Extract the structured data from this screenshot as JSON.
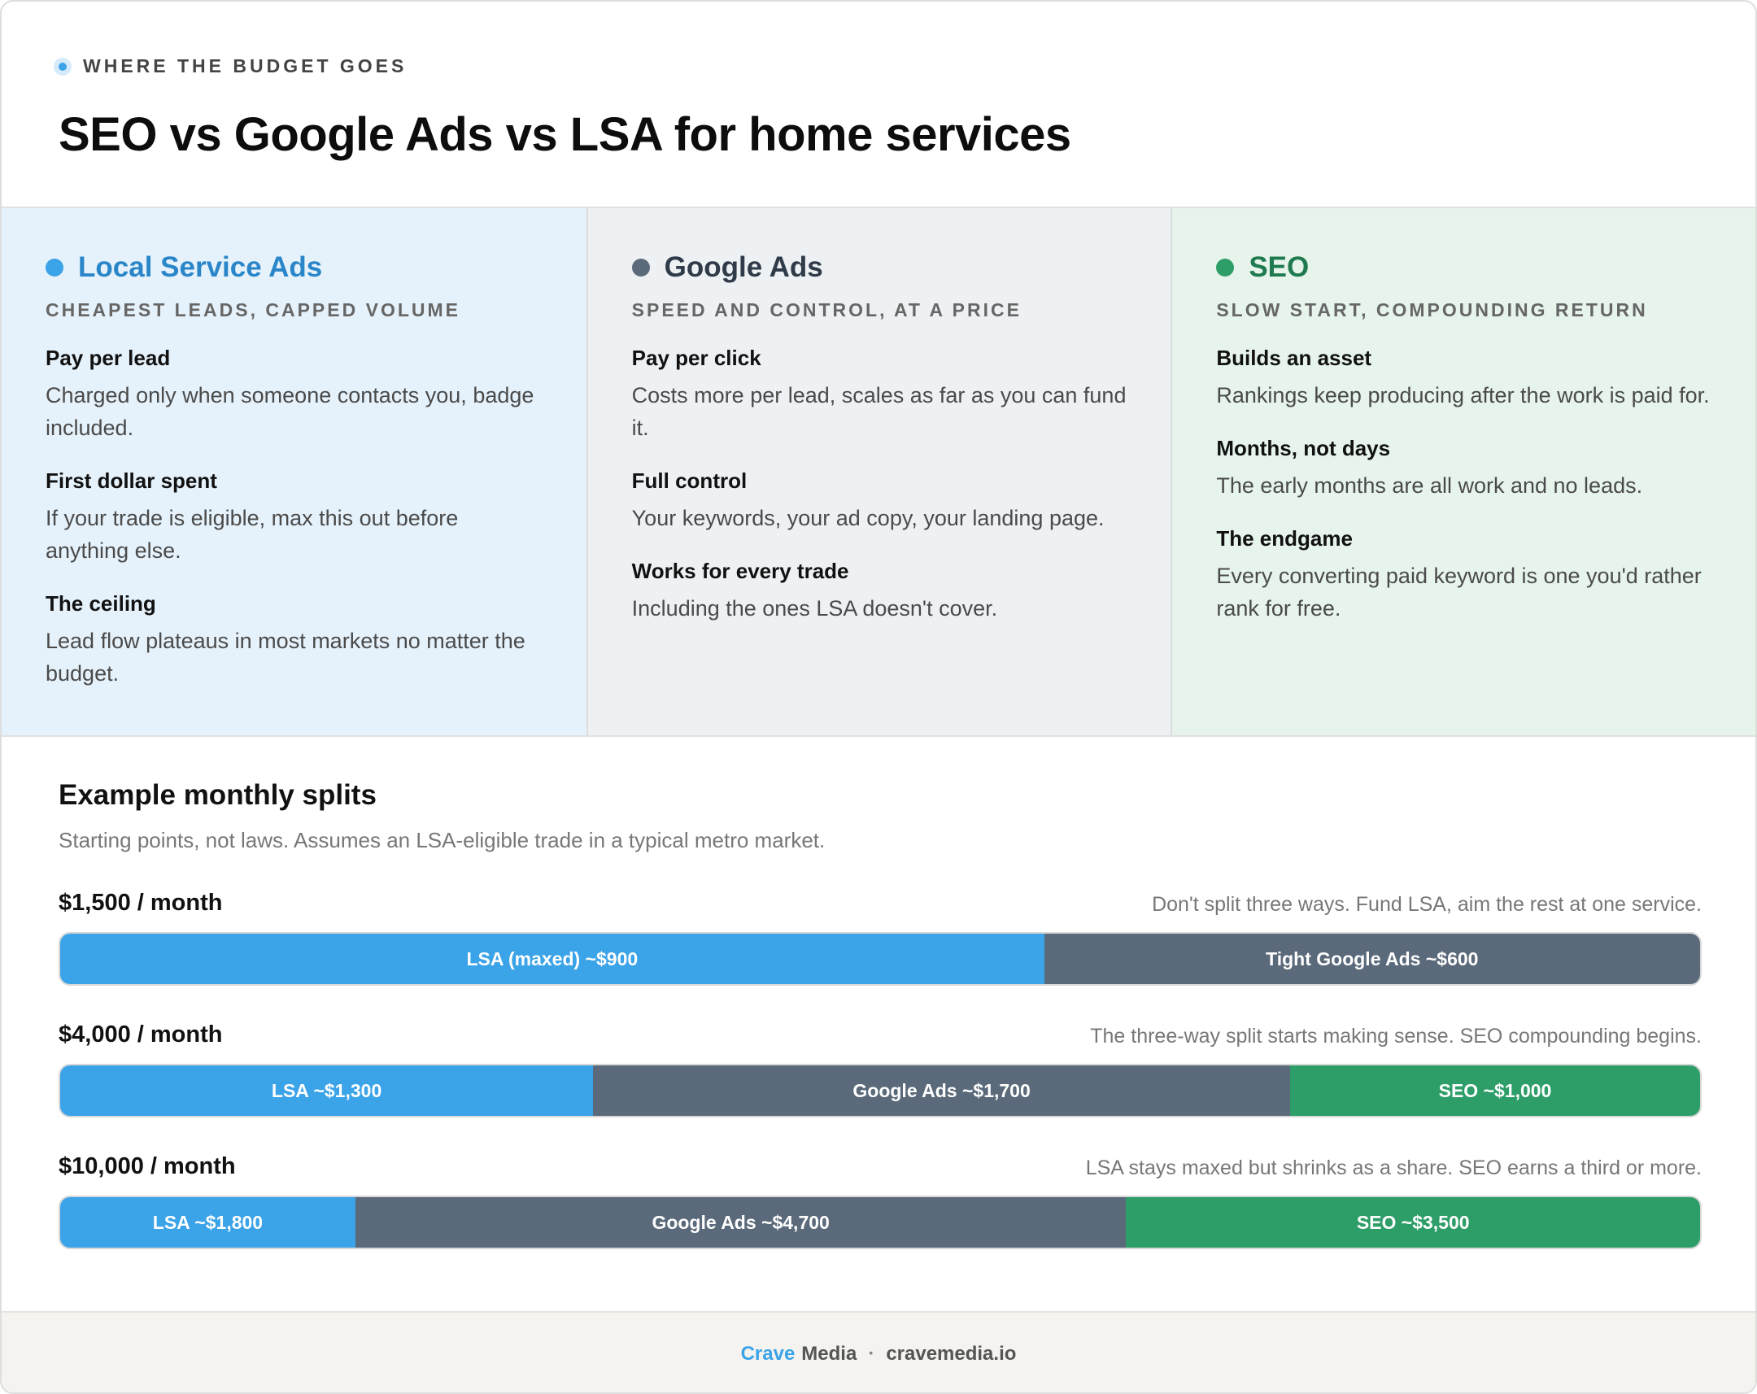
{
  "header": {
    "eyebrow": "WHERE THE BUDGET GOES",
    "title": "SEO vs Google Ads vs LSA for home services"
  },
  "colors": {
    "lsa": "#3ba3e8",
    "lsa_name": "#2a86c8",
    "google_ads": "#5b6a7a",
    "google_ads_name": "#2f3b48",
    "seo": "#2e9e69",
    "seo_name": "#1f7a4f"
  },
  "columns": [
    {
      "name": "Local Service Ads",
      "subtitle": "CHEAPEST LEADS, CAPPED VOLUME",
      "items": [
        {
          "title": "Pay per lead",
          "desc": "Charged only when someone contacts you, badge included."
        },
        {
          "title": "First dollar spent",
          "desc": "If your trade is eligible, max this out before anything else."
        },
        {
          "title": "The ceiling",
          "desc": "Lead flow plateaus in most markets no matter the budget."
        }
      ]
    },
    {
      "name": "Google Ads",
      "subtitle": "SPEED AND CONTROL, AT A PRICE",
      "items": [
        {
          "title": "Pay per click",
          "desc": "Costs more per lead, scales as far as you can fund it."
        },
        {
          "title": "Full control",
          "desc": "Your keywords, your ad copy, your landing page."
        },
        {
          "title": "Works for every trade",
          "desc": "Including the ones LSA doesn't cover."
        }
      ]
    },
    {
      "name": "SEO",
      "subtitle": "SLOW START, COMPOUNDING RETURN",
      "items": [
        {
          "title": "Builds an asset",
          "desc": "Rankings keep producing after the work is paid for."
        },
        {
          "title": "Months, not days",
          "desc": "The early months are all work and no leads."
        },
        {
          "title": "The endgame",
          "desc": "Every converting paid keyword is one you'd rather rank for free."
        }
      ]
    }
  ],
  "splits": {
    "title": "Example monthly splits",
    "subtitle": "Starting points, not laws. Assumes an LSA-eligible trade in a typical metro market.",
    "rows": [
      {
        "amount": "$1,500 / month",
        "note": "Don't split three ways. Fund LSA, aim the rest at one service.",
        "total": 1500,
        "segments": [
          {
            "label": "LSA (maxed) ~$900",
            "value": 900,
            "kind": "lsa"
          },
          {
            "label": "Tight Google Ads ~$600",
            "value": 600,
            "kind": "google_ads"
          }
        ]
      },
      {
        "amount": "$4,000 / month",
        "note": "The three-way split starts making sense. SEO compounding begins.",
        "total": 4000,
        "segments": [
          {
            "label": "LSA ~$1,300",
            "value": 1300,
            "kind": "lsa"
          },
          {
            "label": "Google Ads ~$1,700",
            "value": 1700,
            "kind": "google_ads"
          },
          {
            "label": "SEO ~$1,000",
            "value": 1000,
            "kind": "seo"
          }
        ]
      },
      {
        "amount": "$10,000 / month",
        "note": "LSA stays maxed but shrinks as a share. SEO earns a third or more.",
        "total": 10000,
        "segments": [
          {
            "label": "LSA ~$1,800",
            "value": 1800,
            "kind": "lsa"
          },
          {
            "label": "Google Ads ~$4,700",
            "value": 4700,
            "kind": "google_ads"
          },
          {
            "label": "SEO ~$3,500",
            "value": 3500,
            "kind": "seo"
          }
        ]
      }
    ]
  },
  "footer": {
    "brand_first": "Crave",
    "brand_second": "Media",
    "separator": "·",
    "domain": "cravemedia.io"
  }
}
